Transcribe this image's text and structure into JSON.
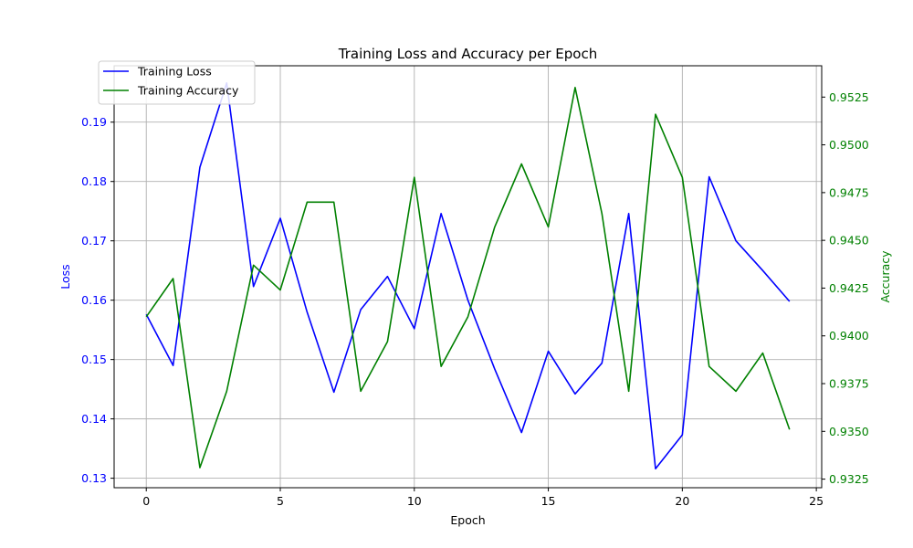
{
  "chart_data": {
    "type": "line",
    "title": "Training Loss and Accuracy per Epoch",
    "xlabel": "Epoch",
    "ylabel_left": "Loss",
    "ylabel_right": "Accuracy",
    "xlim": [
      -1.2,
      25.2
    ],
    "ylim_left": [
      0.1284,
      0.1995
    ],
    "ylim_right": [
      0.93205,
      0.95414
    ],
    "x_ticks": [
      0,
      5,
      10,
      15,
      20,
      25
    ],
    "y_left_ticks": [
      0.13,
      0.14,
      0.15,
      0.16,
      0.17,
      0.18,
      0.19
    ],
    "y_right_ticks": [
      0.9325,
      0.935,
      0.9375,
      0.94,
      0.9425,
      0.945,
      0.9475,
      0.95,
      0.9525
    ],
    "grid": true,
    "legend_position": "top-left",
    "x": [
      0,
      1,
      2,
      3,
      4,
      5,
      6,
      7,
      8,
      9,
      10,
      11,
      12,
      13,
      14,
      15,
      16,
      17,
      18,
      19,
      20,
      21,
      22,
      23,
      24
    ],
    "series": [
      {
        "name": "Training Loss",
        "axis": "left",
        "color": "#0000ff",
        "values": [
          0.1576,
          0.149,
          0.1824,
          0.1966,
          0.1623,
          0.1738,
          0.158,
          0.1445,
          0.1584,
          0.164,
          0.1552,
          0.1746,
          0.16,
          0.1484,
          0.1377,
          0.1514,
          0.1442,
          0.1494,
          0.1746,
          0.1316,
          0.1373,
          0.1808,
          0.17,
          0.165,
          0.1598
        ]
      },
      {
        "name": "Training Accuracy",
        "axis": "right",
        "color": "#008000",
        "values": [
          0.941,
          0.943,
          0.9331,
          0.9371,
          0.9437,
          0.9424,
          0.947,
          0.947,
          0.9371,
          0.9397,
          0.9483,
          0.9384,
          0.941,
          0.9457,
          0.949,
          0.9457,
          0.953,
          0.9464,
          0.9371,
          0.9516,
          0.9483,
          0.9384,
          0.9371,
          0.9391,
          0.9351
        ]
      }
    ]
  }
}
